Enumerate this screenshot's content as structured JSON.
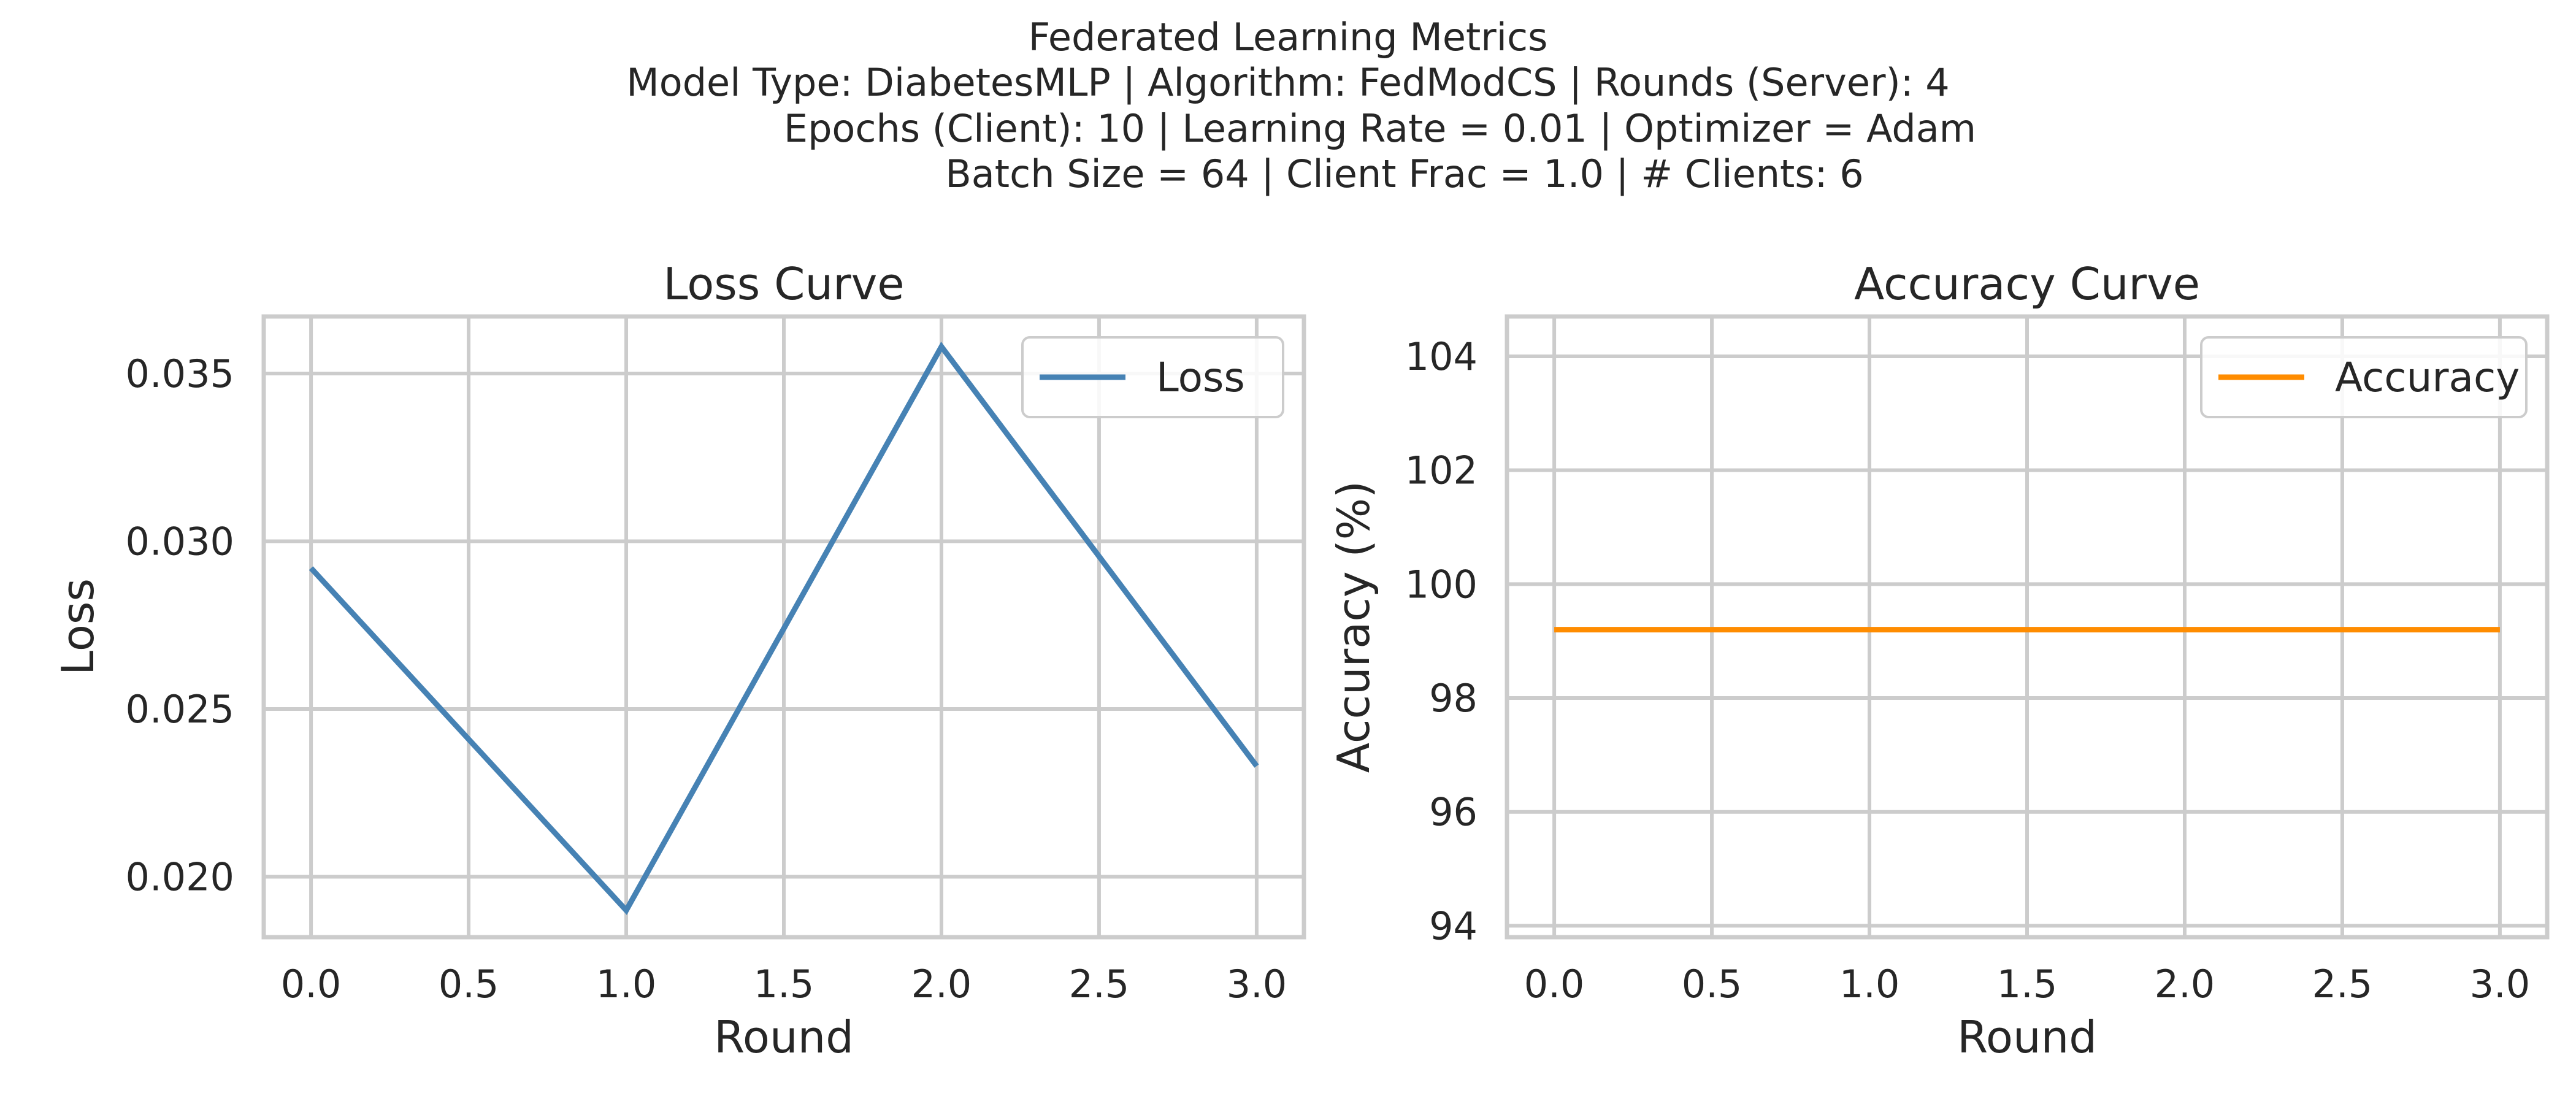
{
  "figure": {
    "suptitle_lines": [
      "Federated Learning Metrics",
      "Model Type: DiabetesMLP | Algorithm: FedModCS | Rounds (Server): 4",
      "Epochs (Client): 10 | Learning Rate = 0.01 | Optimizer = Adam",
      "Batch Size = 64 | Client Frac = 1.0 | # Clients: 6"
    ]
  },
  "chart_data": [
    {
      "type": "line",
      "title": "Loss Curve",
      "xlabel": "Round",
      "ylabel": "Loss",
      "x": [
        0,
        1,
        2,
        3
      ],
      "xlim": [
        -0.15,
        3.15
      ],
      "ylim": [
        0.0182,
        0.0367
      ],
      "xticks": [
        0.0,
        0.5,
        1.0,
        1.5,
        2.0,
        2.5,
        3.0
      ],
      "xtick_labels": [
        "0.0",
        "0.5",
        "1.0",
        "1.5",
        "2.0",
        "2.5",
        "3.0"
      ],
      "yticks": [
        0.02,
        0.025,
        0.03,
        0.035
      ],
      "ytick_labels": [
        "0.020",
        "0.025",
        "0.030",
        "0.035"
      ],
      "series": [
        {
          "name": "Loss",
          "values": [
            0.0292,
            0.019,
            0.0358,
            0.0233
          ],
          "color": "#4682b4"
        }
      ],
      "grid": true,
      "legend": "top-right"
    },
    {
      "type": "line",
      "title": "Accuracy Curve",
      "xlabel": "Round",
      "ylabel": "Accuracy (%)",
      "x": [
        0,
        1,
        2,
        3
      ],
      "xlim": [
        -0.15,
        3.15
      ],
      "ylim": [
        93.8,
        104.7
      ],
      "xticks": [
        0.0,
        0.5,
        1.0,
        1.5,
        2.0,
        2.5,
        3.0
      ],
      "xtick_labels": [
        "0.0",
        "0.5",
        "1.0",
        "1.5",
        "2.0",
        "2.5",
        "3.0"
      ],
      "yticks": [
        94,
        96,
        98,
        100,
        102,
        104
      ],
      "ytick_labels": [
        "94",
        "96",
        "98",
        "100",
        "102",
        "104"
      ],
      "series": [
        {
          "name": "Accuracy",
          "values": [
            99.2,
            99.2,
            99.2,
            99.2
          ],
          "color": "#ff8c00"
        }
      ],
      "grid": true,
      "legend": "top-right"
    }
  ]
}
